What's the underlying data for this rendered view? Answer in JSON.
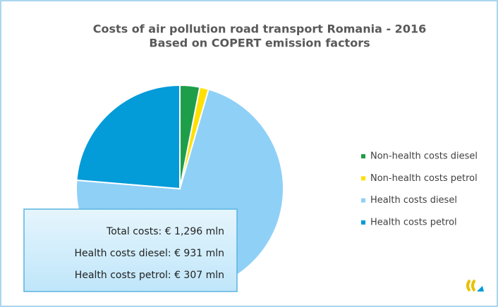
{
  "chart_data": {
    "type": "pie",
    "title": "Costs of air pollution road transport Romania - 2016",
    "subtitle": "Based on COPERT emission factors",
    "categories": [
      "Non-health costs diesel",
      "Non-health costs petrol",
      "Health costs diesel",
      "Health costs petrol"
    ],
    "values": [
      40,
      18,
      931,
      307
    ],
    "colors": [
      "#1f9e4a",
      "#ffe000",
      "#8fd0f7",
      "#039bd8"
    ],
    "legend": "right",
    "annotations": [
      "Total costs: € 1,296 mln",
      "Health costs diesel: € 931 mln",
      "Health costs petrol: € 307 mln"
    ]
  }
}
